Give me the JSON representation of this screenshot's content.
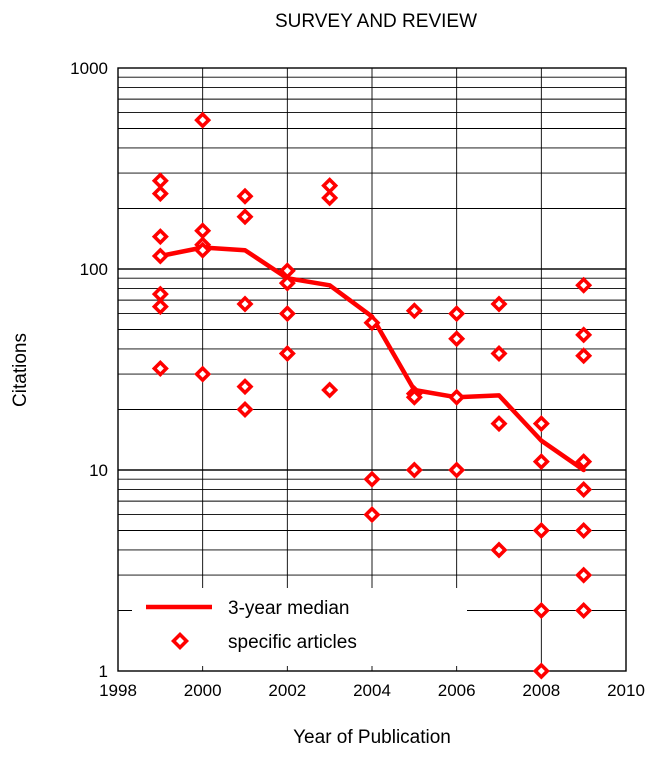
{
  "chart_data": {
    "type": "scatter",
    "title": "SURVEY AND REVIEW",
    "xlabel": "Year of Publication",
    "ylabel": "Citations",
    "xlim": [
      1998,
      2010
    ],
    "ylim": [
      1,
      1000
    ],
    "yscale": "log",
    "grid": true,
    "legend_position": "bottom-left",
    "x_ticks": [
      1998,
      2000,
      2002,
      2004,
      2006,
      2008,
      2010
    ],
    "y_ticks": [
      1,
      10,
      100,
      1000
    ],
    "color": "#ff0000",
    "series": [
      {
        "name": "3-year median",
        "kind": "line",
        "points": [
          [
            1999,
            116
          ],
          [
            2000,
            128
          ],
          [
            2001,
            124
          ],
          [
            2002,
            90
          ],
          [
            2003,
            83
          ],
          [
            2004,
            58
          ],
          [
            2005,
            25
          ],
          [
            2006,
            23
          ],
          [
            2007,
            23.5
          ],
          [
            2008,
            14
          ],
          [
            2009,
            10
          ]
        ]
      },
      {
        "name": "specific articles",
        "kind": "markers",
        "points": [
          [
            1999,
            275
          ],
          [
            1999,
            237
          ],
          [
            1999,
            145
          ],
          [
            1999,
            116
          ],
          [
            1999,
            75
          ],
          [
            1999,
            65
          ],
          [
            1999,
            32
          ],
          [
            2000,
            550
          ],
          [
            2000,
            155
          ],
          [
            2000,
            132
          ],
          [
            2000,
            124
          ],
          [
            2000,
            30
          ],
          [
            2001,
            230
          ],
          [
            2001,
            182
          ],
          [
            2001,
            67
          ],
          [
            2001,
            26
          ],
          [
            2001,
            20
          ],
          [
            2002,
            98
          ],
          [
            2002,
            85
          ],
          [
            2002,
            60
          ],
          [
            2002,
            38
          ],
          [
            2003,
            260
          ],
          [
            2003,
            226
          ],
          [
            2003,
            25
          ],
          [
            2004,
            54
          ],
          [
            2004,
            9
          ],
          [
            2004,
            6
          ],
          [
            2005,
            62
          ],
          [
            2005,
            24
          ],
          [
            2005,
            23
          ],
          [
            2005,
            10
          ],
          [
            2006,
            60
          ],
          [
            2006,
            45
          ],
          [
            2006,
            23
          ],
          [
            2006,
            10
          ],
          [
            2007,
            67
          ],
          [
            2007,
            38
          ],
          [
            2007,
            17
          ],
          [
            2007,
            4
          ],
          [
            2008,
            17
          ],
          [
            2008,
            11
          ],
          [
            2008,
            5
          ],
          [
            2008,
            2
          ],
          [
            2008,
            1
          ],
          [
            2009,
            83
          ],
          [
            2009,
            47
          ],
          [
            2009,
            37
          ],
          [
            2009,
            11
          ],
          [
            2009,
            8
          ],
          [
            2009,
            5
          ],
          [
            2009,
            3
          ],
          [
            2009,
            2
          ]
        ]
      }
    ]
  }
}
